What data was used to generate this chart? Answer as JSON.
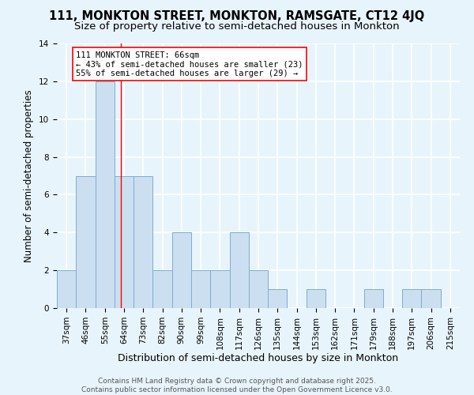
{
  "title": "111, MONKTON STREET, MONKTON, RAMSGATE, CT12 4JQ",
  "subtitle": "Size of property relative to semi-detached houses in Monkton",
  "xlabel": "Distribution of semi-detached houses by size in Monkton",
  "ylabel": "Number of semi-detached properties",
  "categories": [
    "37sqm",
    "46sqm",
    "55sqm",
    "64sqm",
    "73sqm",
    "82sqm",
    "90sqm",
    "99sqm",
    "108sqm",
    "117sqm",
    "126sqm",
    "135sqm",
    "144sqm",
    "153sqm",
    "162sqm",
    "171sqm",
    "179sqm",
    "188sqm",
    "197sqm",
    "206sqm",
    "215sqm"
  ],
  "values": [
    2,
    7,
    12,
    7,
    7,
    2,
    4,
    2,
    2,
    4,
    2,
    1,
    0,
    1,
    0,
    0,
    1,
    0,
    1,
    1,
    0
  ],
  "bar_color": "#ccdff0",
  "bar_edge_color": "#7aaed0",
  "background_color": "#e8f4fb",
  "grid_color": "#ffffff",
  "annotation_box_text": "111 MONKTON STREET: 66sqm\n← 43% of semi-detached houses are smaller (23)\n55% of semi-detached houses are larger (29) →",
  "annotation_box_color": "white",
  "annotation_box_edge_color": "red",
  "red_line_x": 2.85,
  "ylim": [
    0,
    14
  ],
  "yticks": [
    0,
    2,
    4,
    6,
    8,
    10,
    12,
    14
  ],
  "footnote": "Contains HM Land Registry data © Crown copyright and database right 2025.\nContains public sector information licensed under the Open Government Licence v3.0.",
  "title_fontsize": 10.5,
  "subtitle_fontsize": 9.5,
  "xlabel_fontsize": 9,
  "ylabel_fontsize": 8.5,
  "tick_fontsize": 7.5,
  "annot_fontsize": 7.5,
  "footnote_fontsize": 6.5
}
